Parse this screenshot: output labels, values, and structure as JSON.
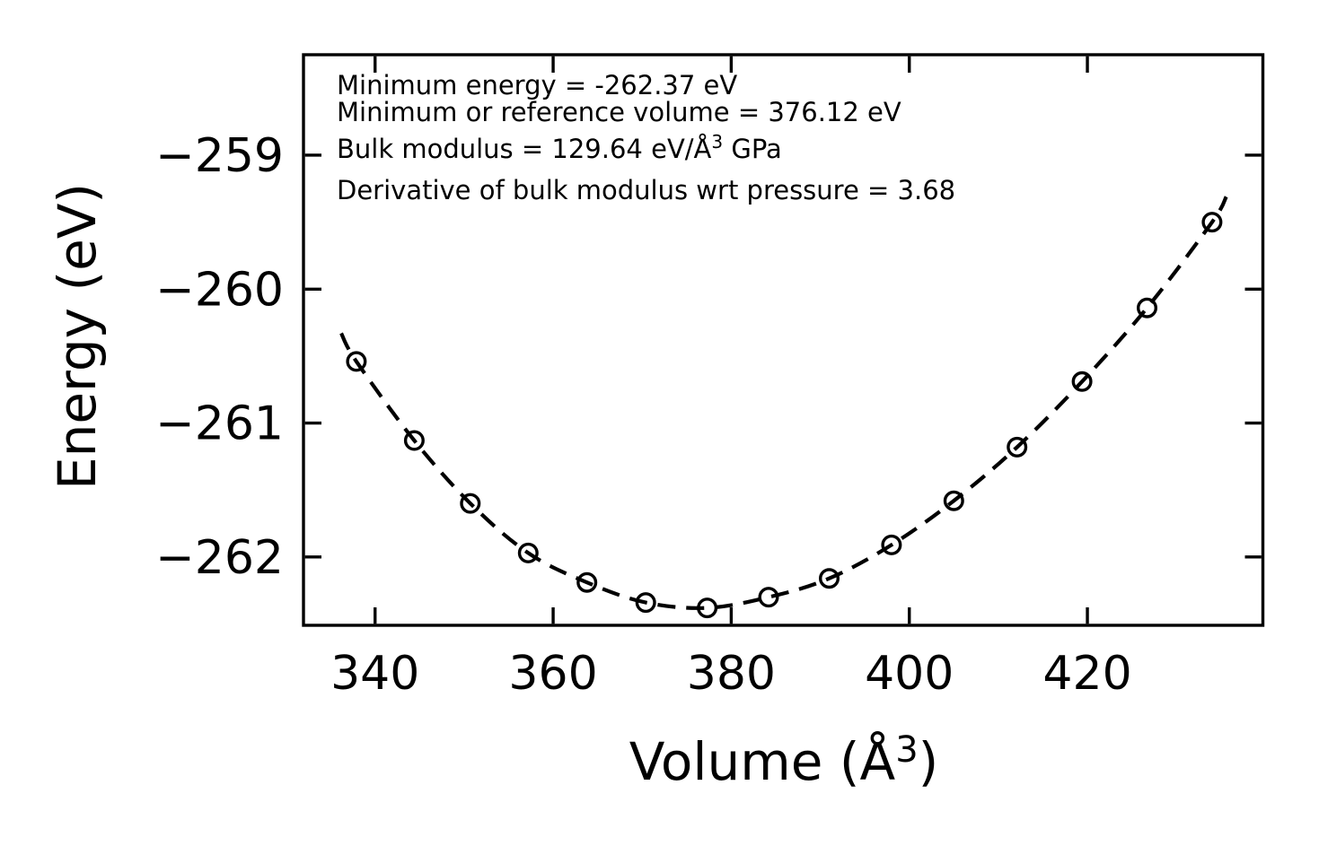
{
  "figure": {
    "background": "#ffffff",
    "foreground": "#000000"
  },
  "chart_data": {
    "type": "scatter",
    "title": "",
    "color": "#000000",
    "background": "#ffffff",
    "grid": false,
    "legend": null,
    "xlabel_pre": "Volume (Å",
    "xlabel_sup": "3",
    "xlabel_post": ")",
    "ylabel": "Energy (eV)",
    "xlim": [
      331.96,
      439.71
    ],
    "ylim": [
      -262.51,
      -258.25
    ],
    "x_ticks": [
      {
        "value": 340,
        "label": "340"
      },
      {
        "value": 360,
        "label": "360"
      },
      {
        "value": 380,
        "label": "380"
      },
      {
        "value": 400,
        "label": "400"
      },
      {
        "value": 420,
        "label": "420"
      }
    ],
    "y_ticks": [
      {
        "value": -259,
        "label": "−259"
      },
      {
        "value": -260,
        "label": "−260"
      },
      {
        "value": -261,
        "label": "−261"
      },
      {
        "value": -262,
        "label": "−262"
      }
    ],
    "annotation": {
      "line1": "Minimum energy = -262.37 eV",
      "line2": "Minimum or reference volume = 376.12 eV",
      "line3_pre": "Bulk modulus = 129.64 eV/Å",
      "line3_sup": "3",
      "line3_post": " GPa",
      "line4": "Derivative of bulk modulus wrt pressure = 3.68"
    },
    "fit_parameters": {
      "minimum_energy_eV": -262.37,
      "minimum_or_reference_volume": 376.12,
      "bulk_modulus": 129.64,
      "bulk_modulus_derivative_wrt_pressure": 3.68
    },
    "series": [
      {
        "name": "eos-fit-curve",
        "style": "dashed",
        "marker": "none",
        "points": [
          [
            336.2,
            -260.33
          ],
          [
            337.9,
            -260.54
          ],
          [
            344.4,
            -261.13
          ],
          [
            350.7,
            -261.6
          ],
          [
            357.2,
            -261.97
          ],
          [
            363.8,
            -262.19
          ],
          [
            370.4,
            -262.34
          ],
          [
            377.3,
            -262.38
          ],
          [
            384.2,
            -262.3
          ],
          [
            391.0,
            -262.16
          ],
          [
            398.0,
            -261.91
          ],
          [
            405.0,
            -261.58
          ],
          [
            412.1,
            -261.18
          ],
          [
            419.4,
            -260.69
          ],
          [
            426.7,
            -260.14
          ],
          [
            434.0,
            -259.5
          ],
          [
            435.6,
            -259.31
          ]
        ]
      },
      {
        "name": "calculated-energies",
        "style": "markers-only",
        "marker": "open-circle",
        "points": [
          [
            337.9,
            -260.54
          ],
          [
            344.4,
            -261.13
          ],
          [
            350.7,
            -261.6
          ],
          [
            357.2,
            -261.97
          ],
          [
            363.8,
            -262.19
          ],
          [
            370.4,
            -262.34
          ],
          [
            377.3,
            -262.38
          ],
          [
            384.2,
            -262.3
          ],
          [
            391.0,
            -262.16
          ],
          [
            398.0,
            -261.91
          ],
          [
            405.0,
            -261.58
          ],
          [
            412.1,
            -261.18
          ],
          [
            419.4,
            -260.69
          ],
          [
            426.7,
            -260.14
          ],
          [
            434.0,
            -259.5
          ]
        ]
      }
    ]
  }
}
